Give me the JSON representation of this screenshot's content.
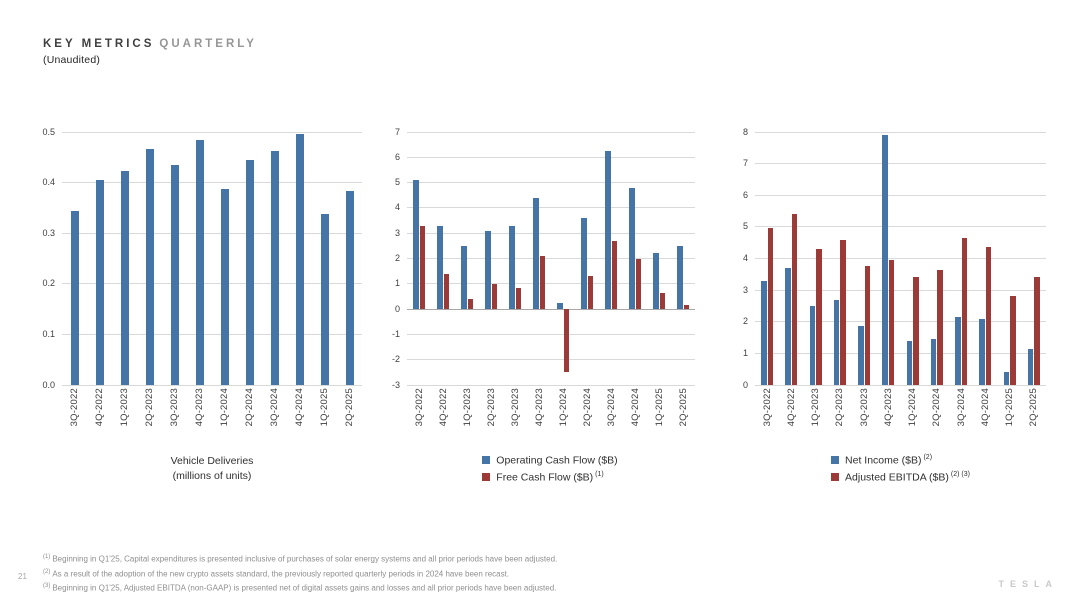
{
  "header": {
    "title_primary": "KEY METRICS",
    "title_secondary": "QUARTERLY",
    "subtitle": "(Unaudited)"
  },
  "colors": {
    "blue": "#4574a6",
    "red": "#9c3a38"
  },
  "chart_data": [
    {
      "type": "bar",
      "title": "Vehicle Deliveries",
      "subtitle": "(millions of units)",
      "categories": [
        "3Q-2022",
        "4Q-2022",
        "1Q-2023",
        "2Q-2023",
        "3Q-2023",
        "4Q-2023",
        "1Q-2024",
        "2Q-2024",
        "3Q-2024",
        "4Q-2024",
        "1Q-2025",
        "2Q-2025"
      ],
      "ylim": [
        0,
        0.5
      ],
      "yticks": [
        0,
        0.1,
        0.2,
        0.3,
        0.4,
        0.5
      ],
      "ytick_labels": [
        "0.0",
        "0.1",
        "0.2",
        "0.3",
        "0.4",
        "0.5"
      ],
      "grid": true,
      "legend_position": "bottom",
      "series": [
        {
          "name": "Vehicle Deliveries",
          "key": "vehicle-deliveries",
          "color": "blue",
          "values": [
            0.343,
            0.405,
            0.423,
            0.466,
            0.435,
            0.484,
            0.387,
            0.444,
            0.463,
            0.496,
            0.337,
            0.384
          ]
        }
      ]
    },
    {
      "type": "bar",
      "categories": [
        "3Q-2022",
        "4Q-2022",
        "1Q-2023",
        "2Q-2023",
        "3Q-2023",
        "4Q-2023",
        "1Q-2024",
        "2Q-2024",
        "3Q-2024",
        "4Q-2024",
        "1Q-2025",
        "2Q-2025"
      ],
      "ylim": [
        -3,
        7
      ],
      "yticks": [
        -3,
        -2,
        -1,
        0,
        1,
        2,
        3,
        4,
        5,
        6,
        7
      ],
      "ytick_labels": [
        "-3",
        "-2",
        "-1",
        "0",
        "1",
        "2",
        "3",
        "4",
        "5",
        "6",
        "7"
      ],
      "grid": true,
      "legend_position": "bottom",
      "series": [
        {
          "name": "Operating Cash Flow ($B)",
          "sup": "",
          "key": "operating-cash-flow",
          "color": "blue",
          "values": [
            5.1,
            3.3,
            2.5,
            3.1,
            3.3,
            4.4,
            0.25,
            3.6,
            6.25,
            4.8,
            2.2,
            2.5
          ]
        },
        {
          "name": "Free Cash Flow ($B)",
          "sup": "(1)",
          "key": "free-cash-flow",
          "color": "red",
          "values": [
            3.3,
            1.4,
            0.4,
            1.0,
            0.85,
            2.1,
            -2.5,
            1.3,
            2.7,
            2.0,
            0.65,
            0.15
          ]
        }
      ]
    },
    {
      "type": "bar",
      "categories": [
        "3Q-2022",
        "4Q-2022",
        "1Q-2023",
        "2Q-2023",
        "3Q-2023",
        "4Q-2023",
        "1Q-2024",
        "2Q-2024",
        "3Q-2024",
        "4Q-2024",
        "1Q-2025",
        "2Q-2025"
      ],
      "ylim": [
        0,
        8
      ],
      "yticks": [
        0,
        1,
        2,
        3,
        4,
        5,
        6,
        7,
        8
      ],
      "ytick_labels": [
        "0",
        "1",
        "2",
        "3",
        "4",
        "5",
        "6",
        "7",
        "8"
      ],
      "grid": true,
      "legend_position": "bottom",
      "series": [
        {
          "name": "Net Income ($B)",
          "sup": "(2)",
          "key": "net-income",
          "color": "blue",
          "values": [
            3.3,
            3.7,
            2.5,
            2.7,
            1.85,
            7.9,
            1.4,
            1.45,
            2.15,
            2.1,
            0.4,
            1.15
          ]
        },
        {
          "name": "Adjusted EBITDA ($B)",
          "sup": "(2) (3)",
          "key": "adjusted-ebitda",
          "color": "red",
          "values": [
            4.95,
            5.4,
            4.3,
            4.6,
            3.75,
            3.95,
            3.4,
            3.65,
            4.65,
            4.35,
            2.8,
            3.4
          ]
        }
      ]
    }
  ],
  "footnotes": [
    {
      "sup": "(1)",
      "text": "Beginning in Q1'25, Capital expenditures is presented inclusive of purchases of solar energy systems and all prior periods have been adjusted."
    },
    {
      "sup": "(2)",
      "text": "As a result of the adoption of the new crypto assets standard, the previously reported quarterly periods in 2024 have been recast."
    },
    {
      "sup": "(3)",
      "text": "Beginning in Q1'25, Adjusted EBITDA (non-GAAP) is presented net of digital assets gains and losses and all prior periods have been adjusted."
    }
  ],
  "page_number": "21",
  "logo_text": "TESLA"
}
